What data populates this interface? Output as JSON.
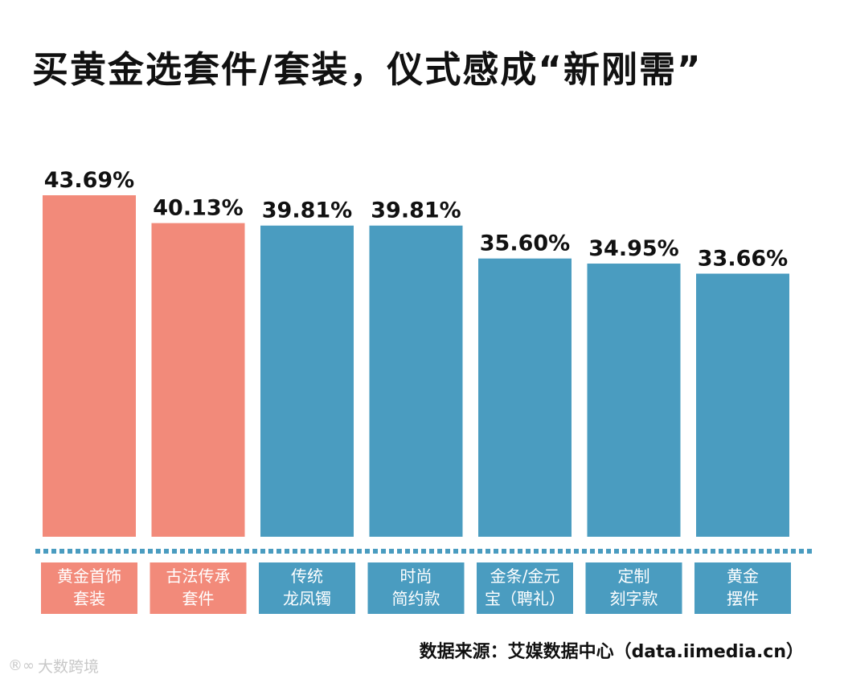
{
  "title": "买黄金选套件/套装，仪式感成“新刚需”",
  "source": "数据来源：艾媒数据中心（data.iimedia.cn）",
  "watermark": {
    "logo_glyph": "®∞",
    "text": "大数跨境"
  },
  "colors": {
    "highlight": "#f28a7a",
    "normal": "#4a9cc0",
    "dotted": "#4a9cc0"
  },
  "chart_data": {
    "type": "bar",
    "title": "买黄金选套件/套装，仪式感成“新刚需”",
    "xlabel": "",
    "ylabel": "",
    "ylim": [
      0,
      43.69
    ],
    "categories": [
      [
        "黄金首饰",
        "套装"
      ],
      [
        "古法传承",
        "套件"
      ],
      [
        "传统",
        "龙凤镯"
      ],
      [
        "时尚",
        "简约款"
      ],
      [
        "金条/金元",
        "宝（聘礼）"
      ],
      [
        "定制",
        "刻字款"
      ],
      [
        "黄金",
        "摆件"
      ]
    ],
    "values": [
      43.69,
      40.13,
      39.81,
      39.81,
      35.6,
      34.95,
      33.66
    ],
    "value_labels": [
      "43.69%",
      "40.13%",
      "39.81%",
      "39.81%",
      "35.60%",
      "34.95%",
      "33.66%"
    ],
    "highlighted": [
      true,
      true,
      false,
      false,
      false,
      false,
      false
    ],
    "grid": false,
    "legend": "none"
  }
}
